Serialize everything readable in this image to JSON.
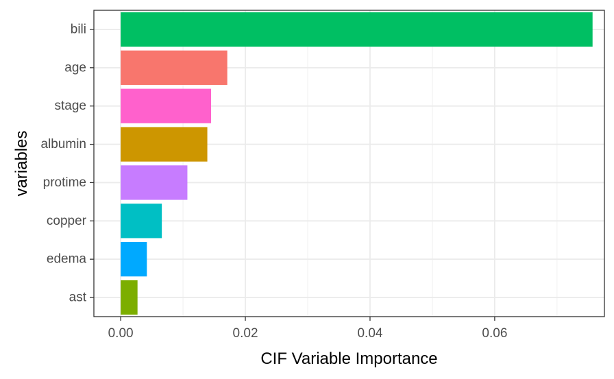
{
  "chart_data": {
    "type": "bar",
    "orientation": "horizontal",
    "title": "",
    "xlabel": "CIF Variable Importance",
    "ylabel": "variables",
    "xlim": [
      -0.0043,
      0.0776
    ],
    "x_ticks": [
      0.0,
      0.02,
      0.04,
      0.06
    ],
    "x_tick_labels": [
      "0.00",
      "0.02",
      "0.04",
      "0.06"
    ],
    "grid": true,
    "legend": "none",
    "bars": [
      {
        "category": "bili",
        "value": 0.0757,
        "color": "#00BF63"
      },
      {
        "category": "age",
        "value": 0.0171,
        "color": "#F8766D"
      },
      {
        "category": "stage",
        "value": 0.0145,
        "color": "#FF61CC"
      },
      {
        "category": "albumin",
        "value": 0.0139,
        "color": "#CD9600"
      },
      {
        "category": "protime",
        "value": 0.0107,
        "color": "#C77CFF"
      },
      {
        "category": "copper",
        "value": 0.0066,
        "color": "#00BFC4"
      },
      {
        "category": "edema",
        "value": 0.0042,
        "color": "#00A9FF"
      },
      {
        "category": "ast",
        "value": 0.0027,
        "color": "#7CAE00"
      }
    ]
  }
}
